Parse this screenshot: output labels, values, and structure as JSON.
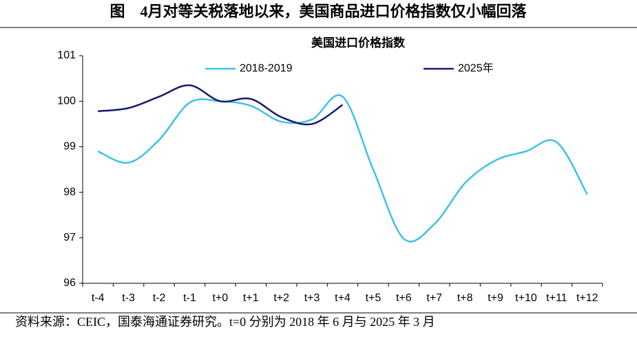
{
  "figure": {
    "title": "图　4月对等关税落地以来，美国商品进口价格指数仅小幅回落",
    "source": "资料来源：CEIC，国泰海通证券研究。t=0 分别为 2018 年 6 月与 2025 年 3 月"
  },
  "chart_data": {
    "type": "line",
    "title": "美国进口价格指数",
    "categories": [
      "t-4",
      "t-3",
      "t-2",
      "t-1",
      "t+0",
      "t+1",
      "t+2",
      "t+3",
      "t+4",
      "t+5",
      "t+6",
      "t+7",
      "t+8",
      "t+9",
      "t+10",
      "t+11",
      "t+12"
    ],
    "series": [
      {
        "name": "2018-2019",
        "color": "#3ec1e6",
        "values": [
          98.9,
          98.65,
          99.15,
          99.97,
          100.0,
          99.9,
          99.55,
          99.6,
          100.1,
          98.5,
          96.98,
          97.3,
          98.2,
          98.7,
          98.9,
          99.1,
          97.95
        ]
      },
      {
        "name": "2025年",
        "color": "#141a6b",
        "values": [
          99.78,
          99.85,
          100.1,
          100.35,
          100.0,
          100.05,
          99.65,
          99.5,
          99.92,
          null,
          null,
          null,
          null,
          null,
          null,
          null,
          null
        ]
      }
    ],
    "ylim": [
      96,
      101
    ],
    "yticks": [
      96,
      97,
      98,
      99,
      100,
      101
    ],
    "grid": false,
    "legend": "top"
  }
}
